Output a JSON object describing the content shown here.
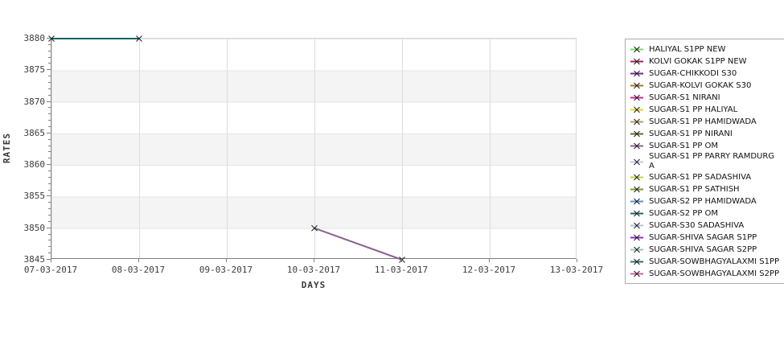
{
  "chart_data": {
    "type": "line",
    "title": "",
    "xlabel": "DAYS",
    "ylabel": "RATES",
    "x_tick_labels": [
      "07-03-2017",
      "08-03-2017",
      "09-03-2017",
      "10-03-2017",
      "11-03-2017",
      "12-03-2017",
      "13-03-2017"
    ],
    "y_tick_labels": [
      "3880",
      "3875",
      "3870",
      "3865",
      "3860",
      "3855",
      "3850",
      "3845"
    ],
    "ylim": [
      3845,
      3880
    ],
    "y_major_step": 5,
    "y_minor_step": 1,
    "grid": true,
    "band_fill": "#f4f4f4",
    "marker": "x",
    "marker_color": "#1a1a1a",
    "legend_position": "right-outside",
    "series": [
      {
        "name": "dark-teal-line",
        "color": "#07636a",
        "points": [
          {
            "x": "07-03-2017",
            "y": 3880
          },
          {
            "x": "08-03-2017",
            "y": 3880
          }
        ]
      },
      {
        "name": "muted-purple-line",
        "color": "#8a6292",
        "points": [
          {
            "x": "10-03-2017",
            "y": 3850
          },
          {
            "x": "11-03-2017",
            "y": 3845
          }
        ]
      }
    ],
    "legend": [
      {
        "label": "HALIYAL S1PP NEW",
        "color": "#77dd66"
      },
      {
        "label": "KOLVI GOKAK S1PP NEW",
        "color": "#b81560"
      },
      {
        "label": "SUGAR-CHIKKODI S30",
        "color": "#7b1fa2"
      },
      {
        "label": "SUGAR-KOLVI GOKAK S30",
        "color": "#a8791a"
      },
      {
        "label": "SUGAR-S1 NIRANI",
        "color": "#d4219c"
      },
      {
        "label": "SUGAR-S1 PP HALIYAL",
        "color": "#d9d916"
      },
      {
        "label": "SUGAR-S1 PP HAMIDWADA",
        "color": "#bd9a62"
      },
      {
        "label": "SUGAR-S1 PP NIRANI",
        "color": "#6e681f"
      },
      {
        "label": "SUGAR-S1 PP OM",
        "color": "#8a5f96"
      },
      {
        "label": "SUGAR-S1 PP PARRY RAMDURG\nA",
        "color": "#c9c6e8"
      },
      {
        "label": "SUGAR-S1 PP SADASHIVA",
        "color": "#bcd93a"
      },
      {
        "label": "SUGAR-S1 PP SATHISH",
        "color": "#7a9e23"
      },
      {
        "label": "SUGAR-S2 PP HAMIDWADA",
        "color": "#5596d6"
      },
      {
        "label": "SUGAR-S2 PP OM",
        "color": "#0c6b70"
      },
      {
        "label": "SUGAR-S30 SADASHIVA",
        "color": "#b4c4d4"
      },
      {
        "label": "SUGAR-SHIVA SAGAR S1PP",
        "color": "#9b1fd9"
      },
      {
        "label": "SUGAR-SHIVA SAGAR S2PP",
        "color": "#92ccb8"
      },
      {
        "label": "SUGAR-SOWBHAGYALAXMI S1PP",
        "color": "#2f7070"
      },
      {
        "label": "SUGAR-SOWBHAGYALAXMI S2PP",
        "color": "#d45fb0"
      }
    ]
  }
}
